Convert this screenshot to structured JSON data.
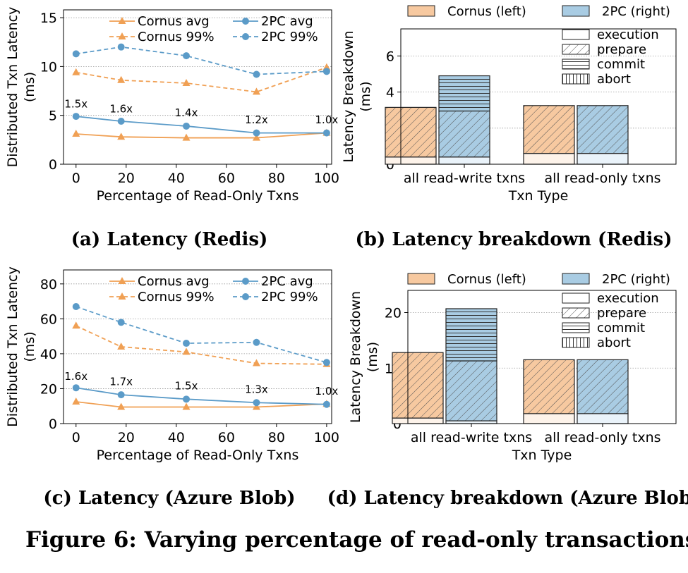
{
  "figure_caption": "Figure 6: Varying percentage of read-only transactions",
  "colors": {
    "cornus": "#f0a054",
    "twopc": "#5b9bc8",
    "cornus_fill": "#f7c9a0",
    "twopc_fill": "#a9cce3"
  },
  "chart_data": [
    {
      "id": "a",
      "type": "line",
      "caption": "(a) Latency (Redis)",
      "xlabel": "Percentage of Read-Only Txns",
      "ylabel": [
        "Distributed Txn Latency",
        "(ms)"
      ],
      "xlim": [
        -5,
        102
      ],
      "ylim": [
        0,
        15.8
      ],
      "xticks": [
        0,
        20,
        40,
        60,
        80,
        100
      ],
      "yticks": [
        0,
        5,
        10,
        15
      ],
      "grid": "horizontal",
      "legend_position": "top",
      "x": [
        0,
        18,
        44,
        72,
        100
      ],
      "series": [
        {
          "name": "Cornus avg",
          "values": [
            3.1,
            2.8,
            2.7,
            2.7,
            3.2
          ],
          "color": "#f0a054",
          "style": "solid",
          "marker": "triangle"
        },
        {
          "name": "Cornus 99%",
          "values": [
            9.4,
            8.6,
            8.3,
            7.4,
            9.9
          ],
          "color": "#f0a054",
          "style": "dashed",
          "marker": "triangle"
        },
        {
          "name": "2PC avg",
          "values": [
            4.9,
            4.4,
            3.9,
            3.2,
            3.2
          ],
          "color": "#5b9bc8",
          "style": "solid",
          "marker": "circle"
        },
        {
          "name": "2PC 99%",
          "values": [
            11.3,
            12.0,
            11.1,
            9.2,
            9.5
          ],
          "color": "#5b9bc8",
          "style": "dashed",
          "marker": "circle"
        }
      ],
      "annotations": [
        {
          "text": "1.5x",
          "x": 0,
          "y": 5.8
        },
        {
          "text": "1.6x",
          "x": 18,
          "y": 5.3
        },
        {
          "text": "1.4x",
          "x": 44,
          "y": 4.9
        },
        {
          "text": "1.2x",
          "x": 72,
          "y": 4.2
        },
        {
          "text": "1.0x",
          "x": 100,
          "y": 4.2
        }
      ]
    },
    {
      "id": "b",
      "type": "bar",
      "stacked": true,
      "caption": "(b) Latency breakdown (Redis)",
      "xlabel": "Txn Type",
      "ylabel": [
        "Latency Breakdown",
        "(ms)"
      ],
      "ylim": [
        0,
        7.5
      ],
      "yticks": [
        0,
        2,
        4,
        6
      ],
      "grid": "horizontal",
      "categories": [
        "all read-write txns",
        "all read-only txns"
      ],
      "systems": [
        {
          "name": "Cornus (left)",
          "color": "#f7c9a0"
        },
        {
          "name": "2PC (right)",
          "color": "#a9cce3"
        }
      ],
      "components": [
        {
          "name": "execution",
          "pattern": "none"
        },
        {
          "name": "prepare",
          "pattern": "diagonal"
        },
        {
          "name": "commit",
          "pattern": "horizontal"
        },
        {
          "name": "abort",
          "pattern": "vertical"
        }
      ],
      "series": [
        {
          "name": "Cornus (left)",
          "stacks": [
            [
              0.4,
              2.75,
              0.0,
              0.0
            ],
            [
              0.6,
              2.65,
              0.0,
              0.0
            ]
          ]
        },
        {
          "name": "2PC (right)",
          "stacks": [
            [
              0.4,
              2.55,
              1.95,
              0.0
            ],
            [
              0.6,
              2.65,
              0.0,
              0.0
            ]
          ]
        }
      ]
    },
    {
      "id": "c",
      "type": "line",
      "caption": "(c) Latency (Azure Blob)",
      "xlabel": "Percentage of Read-Only Txns",
      "ylabel": [
        "Distributed Txn Latency",
        "(ms)"
      ],
      "xlim": [
        -5,
        102
      ],
      "ylim": [
        0,
        88
      ],
      "xticks": [
        0,
        20,
        40,
        60,
        80,
        100
      ],
      "yticks": [
        0,
        20,
        40,
        60,
        80
      ],
      "grid": "horizontal",
      "legend_position": "top",
      "x": [
        0,
        18,
        44,
        72,
        100
      ],
      "series": [
        {
          "name": "Cornus avg",
          "values": [
            12.5,
            9.5,
            9.5,
            9.5,
            11.2
          ],
          "color": "#f0a054",
          "style": "solid",
          "marker": "triangle"
        },
        {
          "name": "Cornus 99%",
          "values": [
            56,
            44,
            41,
            34.5,
            34
          ],
          "color": "#f0a054",
          "style": "dashed",
          "marker": "triangle"
        },
        {
          "name": "2PC avg",
          "values": [
            20.5,
            16.5,
            14,
            12,
            11
          ],
          "color": "#5b9bc8",
          "style": "solid",
          "marker": "circle"
        },
        {
          "name": "2PC 99%",
          "values": [
            67,
            58,
            46,
            46.5,
            35
          ],
          "color": "#5b9bc8",
          "style": "dashed",
          "marker": "circle"
        }
      ],
      "annotations": [
        {
          "text": "1.6x",
          "x": 0,
          "y": 25
        },
        {
          "text": "1.7x",
          "x": 18,
          "y": 22
        },
        {
          "text": "1.5x",
          "x": 44,
          "y": 19.5
        },
        {
          "text": "1.3x",
          "x": 72,
          "y": 17.5
        },
        {
          "text": "1.0x",
          "x": 100,
          "y": 16.5
        }
      ]
    },
    {
      "id": "d",
      "type": "bar",
      "stacked": true,
      "caption": "(d) Latency breakdown (Azure Blob)",
      "xlabel": "Txn Type",
      "ylabel": [
        "Latency Breakdown",
        "(ms)"
      ],
      "ylim": [
        0,
        24
      ],
      "yticks": [
        0,
        10,
        20
      ],
      "grid": "horizontal",
      "categories": [
        "all read-write txns",
        "all read-only txns"
      ],
      "systems": [
        {
          "name": "Cornus (left)",
          "color": "#f7c9a0"
        },
        {
          "name": "2PC (right)",
          "color": "#a9cce3"
        }
      ],
      "components": [
        {
          "name": "execution",
          "pattern": "none"
        },
        {
          "name": "prepare",
          "pattern": "diagonal"
        },
        {
          "name": "commit",
          "pattern": "horizontal"
        },
        {
          "name": "abort",
          "pattern": "vertical"
        }
      ],
      "series": [
        {
          "name": "Cornus (left)",
          "stacks": [
            [
              1.0,
              11.8,
              0.0,
              0.0
            ],
            [
              1.8,
              9.7,
              0.0,
              0.0
            ]
          ]
        },
        {
          "name": "2PC (right)",
          "stacks": [
            [
              0.5,
              10.8,
              9.4,
              0.0
            ],
            [
              1.8,
              9.7,
              0.0,
              0.0
            ]
          ]
        }
      ]
    }
  ]
}
